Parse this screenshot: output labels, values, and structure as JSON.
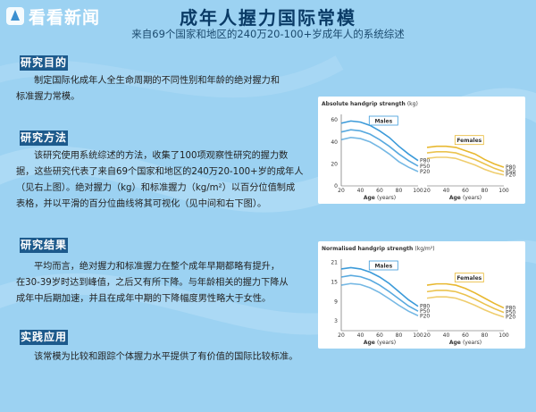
{
  "header": {
    "logo_text": "看看新闻",
    "title": "成年人握力国际常模",
    "subtitle": "来自69个国家和地区的240万20-100+岁成年人的系统综述"
  },
  "sections": [
    {
      "heading": "研究目的",
      "lines": [
        "制定国际化成年人全生命周期的不同性别和年龄的绝对握力和",
        "标准握力常模。"
      ]
    },
    {
      "heading": "研究方法",
      "lines": [
        "该研究使用系统综述的方法，收集了100项观察性研究的握力数",
        "据，这些研究代表了来自69个国家和地区的240万20-100+岁的成年人",
        "（见右上图）。绝对握力（kg）和标准握力（kg/m²）以百分位值制成",
        "表格，并以平滑的百分位曲线将其可视化（见中间和右下图）。"
      ]
    },
    {
      "heading": "研究结果",
      "lines": [
        "平均而言，绝对握力和标准握力在整个成年早期都略有提升，",
        "在30-39岁时达到峰值，之后又有所下降。与年龄相关的握力下降从",
        "成年中后期加速，并且在成年中期的下降幅度男性略大于女性。"
      ]
    },
    {
      "heading": "实践应用",
      "lines": [
        "该常模为比较和跟踪个体握力水平提供了有价值的国际比较标准。"
      ]
    }
  ],
  "chart_data": [
    {
      "type": "line",
      "title": "Absolute handgrip strength",
      "title_unit": "(kg)",
      "xlabel": "Age",
      "xlabel_unit": "(years)",
      "x": [
        20,
        30,
        40,
        50,
        60,
        70,
        80,
        90,
        100
      ],
      "x_ticks": [
        20,
        40,
        60,
        80,
        100
      ],
      "xlim": [
        20,
        100
      ],
      "y_ticks": [
        0,
        20,
        40,
        60
      ],
      "ylim": [
        0,
        65
      ],
      "panels": [
        {
          "label": "Males",
          "color": "#3b9ad9",
          "series": [
            {
              "name": "P80",
              "values": [
                57,
                59,
                58,
                55,
                50,
                44,
                36,
                29,
                23
              ]
            },
            {
              "name": "P50",
              "values": [
                49,
                51,
                50,
                47,
                42,
                36,
                29,
                23,
                18
              ]
            },
            {
              "name": "P20",
              "values": [
                42,
                44,
                43,
                40,
                35,
                29,
                22,
                17,
                13
              ]
            }
          ]
        },
        {
          "label": "Females",
          "color": "#e8b830",
          "series": [
            {
              "name": "P80",
              "values": [
                35,
                36,
                36,
                35,
                32,
                29,
                24,
                20,
                17
              ]
            },
            {
              "name": "P50",
              "values": [
                30,
                31,
                31,
                30,
                27,
                24,
                20,
                16,
                13
              ]
            },
            {
              "name": "P20",
              "values": [
                25,
                26,
                26,
                25,
                22,
                19,
                15,
                12,
                10
              ]
            }
          ]
        }
      ]
    },
    {
      "type": "line",
      "title": "Normalised handgrip strength",
      "title_unit": "(kg/m²)",
      "xlabel": "Age",
      "xlabel_unit": "(years)",
      "x": [
        20,
        30,
        40,
        50,
        60,
        70,
        80,
        90,
        100
      ],
      "x_ticks": [
        20,
        40,
        60,
        80,
        100
      ],
      "xlim": [
        20,
        100
      ],
      "y_ticks": [
        3,
        9,
        15,
        21
      ],
      "ylim": [
        0,
        22
      ],
      "panels": [
        {
          "label": "Males",
          "color": "#3b9ad9",
          "series": [
            {
              "name": "P80",
              "values": [
                19,
                19.4,
                19,
                18,
                16.5,
                14.5,
                12,
                9.5,
                7.5
              ]
            },
            {
              "name": "P50",
              "values": [
                16.5,
                17,
                16.6,
                15.6,
                14,
                12,
                9.8,
                7.6,
                6
              ]
            },
            {
              "name": "P20",
              "values": [
                14,
                14.5,
                14.2,
                13.2,
                11.7,
                9.8,
                7.8,
                6,
                4.6
              ]
            }
          ]
        },
        {
          "label": "Females",
          "color": "#e8b830",
          "series": [
            {
              "name": "P80",
              "values": [
                14,
                14.4,
                14.4,
                14,
                13,
                11.6,
                10,
                8.4,
                7
              ]
            },
            {
              "name": "P50",
              "values": [
                12,
                12.4,
                12.4,
                12,
                11,
                9.7,
                8.2,
                6.8,
                5.6
              ]
            },
            {
              "name": "P20",
              "values": [
                10,
                10.4,
                10.4,
                10,
                9,
                7.8,
                6.4,
                5.2,
                4.2
              ]
            }
          ]
        }
      ]
    }
  ],
  "colors": {
    "background": "#9cd2f2",
    "heading_bg": "#1d5a8c",
    "title": "#0a3b66"
  }
}
